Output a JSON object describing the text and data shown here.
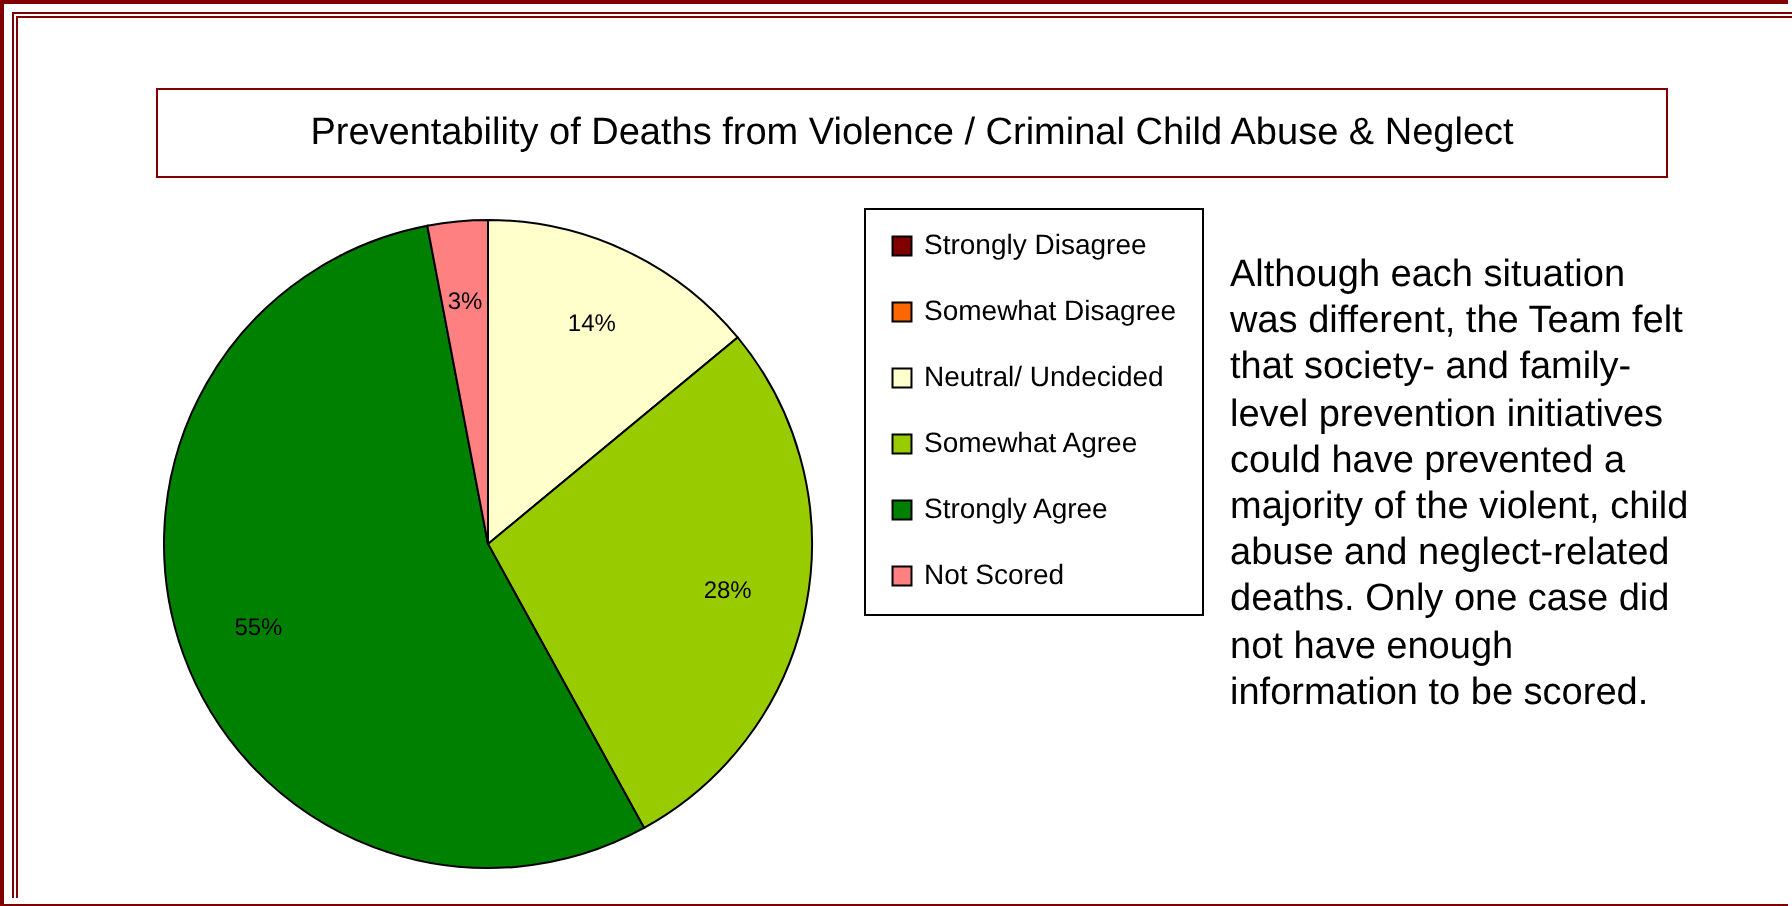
{
  "chart_data": {
    "type": "pie",
    "title": "Preventability of Deaths from Violence / Criminal Child Abuse & Neglect",
    "categories": [
      "Strongly Disagree",
      "Somewhat Disagree",
      "Neutral/ Undecided",
      "Somewhat Agree",
      "Strongly Agree",
      "Not Scored"
    ],
    "values": [
      0,
      0,
      14,
      28,
      55,
      3
    ],
    "colors": [
      "#800000",
      "#ff6600",
      "#ffffcc",
      "#99cc00",
      "#008000",
      "#ff8080"
    ],
    "value_labels": [
      null,
      null,
      "14%",
      "28%",
      "55%",
      "3%"
    ],
    "legend": "right",
    "annotations": [
      "Although each situation was different, the Team felt that society- and family-level prevention initiatives could have prevented a majority of the violent, child abuse and neglect-related deaths.  Only one case did not have enough information to be scored."
    ]
  }
}
